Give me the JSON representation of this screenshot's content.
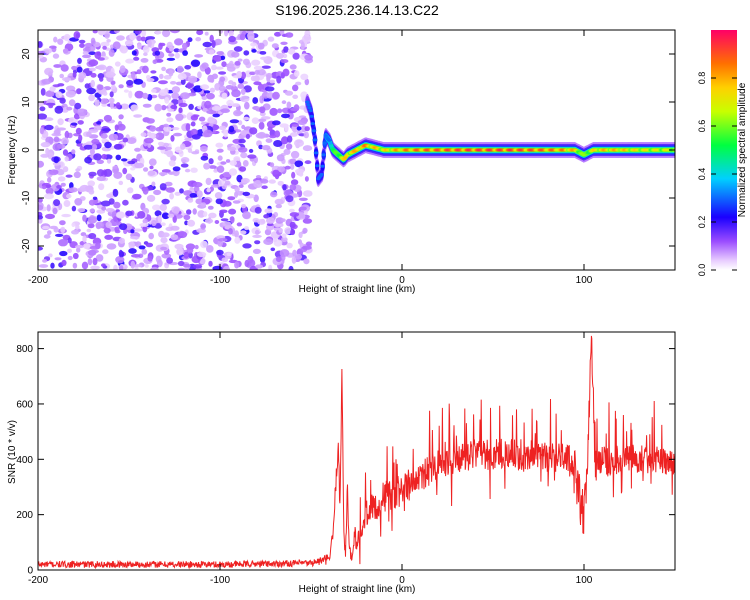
{
  "title": "S196.2025.236.14.13.C22",
  "chart_data": [
    {
      "type": "heatmap",
      "xlabel": "Height of straight line (km)",
      "ylabel": "Frequency (Hz)",
      "xlim": [
        -200,
        150
      ],
      "ylim": [
        -25,
        25
      ],
      "x_ticks": [
        -200,
        -100,
        0,
        100
      ],
      "y_ticks": [
        -20,
        -10,
        0,
        10,
        20
      ],
      "noise_region_x": [
        -200,
        -51
      ],
      "signal_track": {
        "x": [
          -52,
          -50,
          -48,
          -46,
          -44,
          -42,
          -40,
          -38,
          -35,
          -32,
          -30,
          -25,
          -20,
          -15,
          -10,
          0,
          10,
          20,
          40,
          60,
          80,
          90,
          95,
          100,
          105,
          110,
          120,
          130,
          150
        ],
        "freq": [
          10,
          8,
          3,
          -6,
          -5,
          3,
          2,
          0,
          -1,
          -2,
          -1,
          0,
          1,
          0.5,
          0,
          0,
          0,
          0,
          0,
          0,
          0,
          0,
          0,
          -1,
          0,
          0,
          0,
          0,
          0
        ],
        "amplitude": [
          0.15,
          0.2,
          0.25,
          0.2,
          0.2,
          0.3,
          0.4,
          0.5,
          0.65,
          0.75,
          0.8,
          0.8,
          0.85,
          0.8,
          0.75,
          0.85,
          0.9,
          0.92,
          0.95,
          0.95,
          0.9,
          0.85,
          0.8,
          0.6,
          0.75,
          0.8,
          0.8,
          0.75,
          0.7
        ]
      },
      "colorbar": {
        "label": "Normalized spectral amplitude",
        "range": [
          0,
          1
        ],
        "ticks": [
          0.0,
          0.2,
          0.4,
          0.6,
          0.8
        ],
        "tick_labels": [
          "0.0",
          "0.2",
          "0.4",
          "0.6",
          "0.8"
        ],
        "colors": [
          "#ffffff",
          "#a05cff",
          "#0000ff",
          "#00ffff",
          "#00ff00",
          "#ffff00",
          "#ff8000",
          "#ff0060"
        ]
      }
    },
    {
      "type": "line",
      "xlabel": "Height of straight line (km)",
      "ylabel": "SNR (10 * v/v)",
      "xlim": [
        -200,
        150
      ],
      "ylim": [
        0,
        860
      ],
      "x_ticks": [
        -200,
        -100,
        0,
        100
      ],
      "y_ticks": [
        0,
        200,
        400,
        600,
        800
      ],
      "line_color": "#ee2222",
      "series": [
        {
          "name": "SNR",
          "x": [
            -200,
            -100,
            -50,
            -40,
            -38,
            -36,
            -35,
            -34,
            -33,
            -32,
            -31,
            -30,
            -29,
            -28,
            -27,
            -26,
            -25,
            -22,
            -20,
            -15,
            -10,
            -5,
            0,
            5,
            10,
            20,
            30,
            40,
            60,
            80,
            90,
            95,
            98,
            100,
            102,
            104,
            106,
            110,
            120,
            140,
            150
          ],
          "y": [
            20,
            20,
            25,
            40,
            120,
            350,
            480,
            200,
            745,
            150,
            60,
            300,
            80,
            45,
            50,
            150,
            90,
            170,
            200,
            230,
            260,
            280,
            290,
            310,
            330,
            380,
            400,
            420,
            415,
            410,
            405,
            380,
            260,
            180,
            380,
            860,
            380,
            390,
            400,
            400,
            390
          ],
          "noise_amplitude": [
            12,
            12,
            12,
            20,
            30,
            40,
            60,
            50,
            40,
            40,
            30,
            40,
            30,
            20,
            20,
            40,
            40,
            50,
            50,
            55,
            60,
            60,
            60,
            60,
            60,
            60,
            55,
            55,
            60,
            55,
            55,
            60,
            80,
            90,
            70,
            40,
            70,
            55,
            55,
            50,
            50
          ]
        }
      ]
    }
  ]
}
